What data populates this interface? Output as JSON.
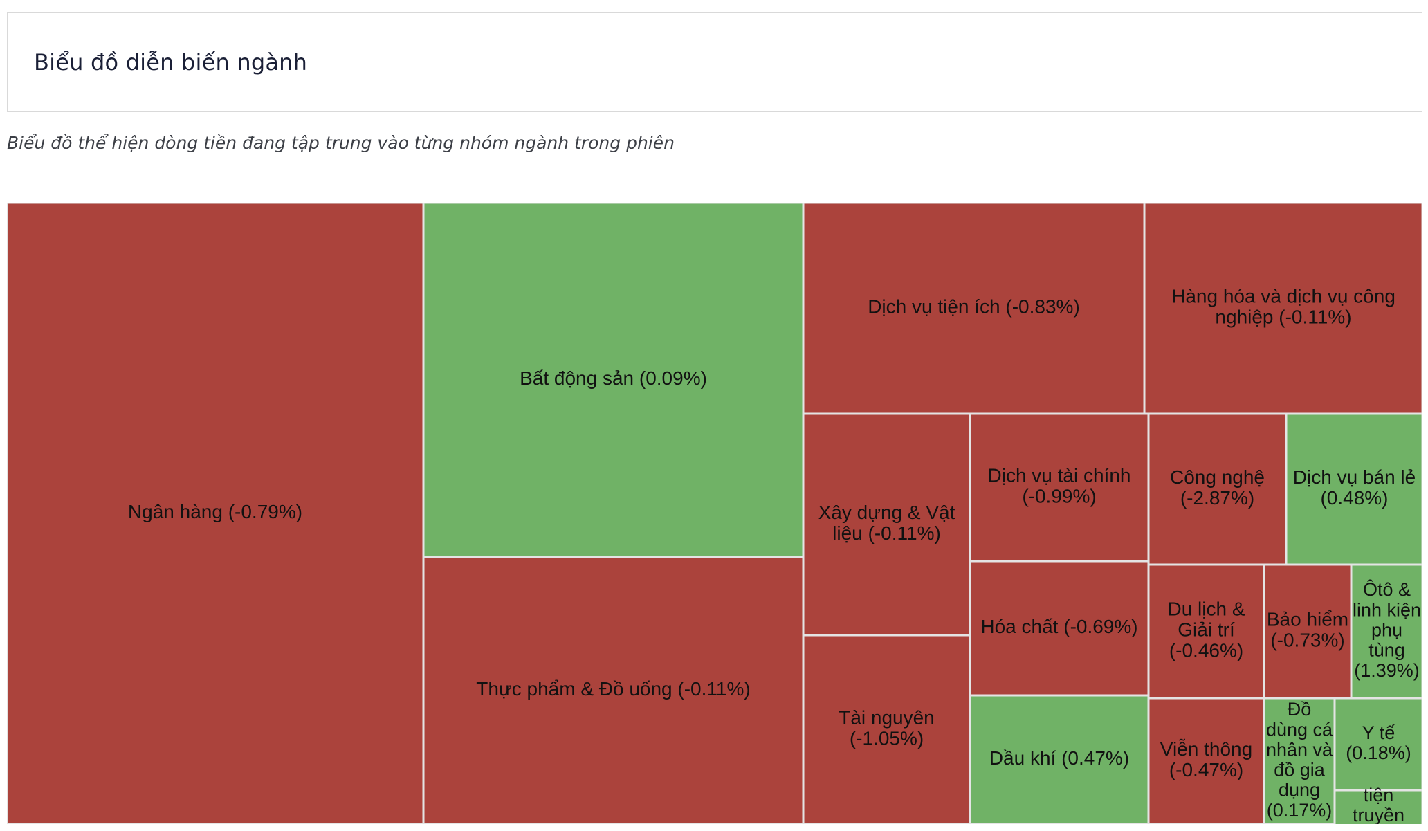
{
  "header": {
    "title": "Biểu đồ diễn biến ngành"
  },
  "subtitle": "Biểu đồ thể hiện dòng tiền đang tập trung vào từng nhóm ngành trong phiên",
  "colors": {
    "negative": "#ab433c",
    "positive": "#70b266",
    "border": "#e4e4e4"
  },
  "chart_data": {
    "type": "treemap",
    "items": [
      {
        "name": "Ngân hàng",
        "change": "-0.79%",
        "label": "Ngân hàng (-0.79%)",
        "color": "negative"
      },
      {
        "name": "Bất động sản",
        "change": "0.09%",
        "label": "Bất động sản (0.09%)",
        "color": "positive"
      },
      {
        "name": "Thực phẩm & Đồ uống",
        "change": "-0.11%",
        "label": "Thực phẩm & Đồ uống (-0.11%)",
        "color": "negative"
      },
      {
        "name": "Dịch vụ tiện ích",
        "change": "-0.83%",
        "label": "Dịch vụ tiện ích (-0.83%)",
        "color": "negative"
      },
      {
        "name": "Hàng hóa và dịch vụ công nghiệp",
        "change": "-0.11%",
        "label": "Hàng hóa và dịch vụ công nghiệp (-0.11%)",
        "color": "negative"
      },
      {
        "name": "Xây dựng & Vật liệu",
        "change": "-0.11%",
        "label": "Xây dựng & Vật liệu (-0.11%)",
        "color": "negative"
      },
      {
        "name": "Tài nguyên",
        "change": "-1.05%",
        "label": "Tài nguyên (-1.05%)",
        "color": "negative"
      },
      {
        "name": "Dịch vụ tài chính",
        "change": "-0.99%",
        "label": "Dịch vụ tài chính (-0.99%)",
        "color": "negative"
      },
      {
        "name": "Hóa chất",
        "change": "-0.69%",
        "label": "Hóa chất (-0.69%)",
        "color": "negative"
      },
      {
        "name": "Dầu khí",
        "change": "0.47%",
        "label": "Dầu khí (0.47%)",
        "color": "positive"
      },
      {
        "name": "Công nghệ",
        "change": "-2.87%",
        "label": "Công nghệ (-2.87%)",
        "color": "negative"
      },
      {
        "name": "Dịch vụ bán lẻ",
        "change": "0.48%",
        "label": "Dịch vụ bán lẻ (0.48%)",
        "color": "positive"
      },
      {
        "name": "Du lịch & Giải trí",
        "change": "-0.46%",
        "label": "Du lịch & Giải trí (-0.46%)",
        "color": "negative"
      },
      {
        "name": "Bảo hiểm",
        "change": "-0.73%",
        "label": "Bảo hiểm (-0.73%)",
        "color": "negative"
      },
      {
        "name": "Ôtô & linh kiện phụ tùng",
        "change": "1.39%",
        "label": "Ôtô & linh kiện phụ tùng (1.39%)",
        "color": "positive"
      },
      {
        "name": "Viễn thông",
        "change": "-0.47%",
        "label": "Viễn thông (-0.47%)",
        "color": "negative"
      },
      {
        "name": "Đồ dùng cá nhân và đồ gia dụng",
        "change": "0.17%",
        "label": "Đồ dùng cá nhân và đồ gia dụng (0.17%)",
        "color": "positive"
      },
      {
        "name": "Y tế",
        "change": "0.18%",
        "label": "Y tế (0.18%)",
        "color": "positive"
      },
      {
        "name": "Phương tiện truyền thông",
        "change": "",
        "label": "tiện truyền thông",
        "color": "positive"
      }
    ]
  }
}
